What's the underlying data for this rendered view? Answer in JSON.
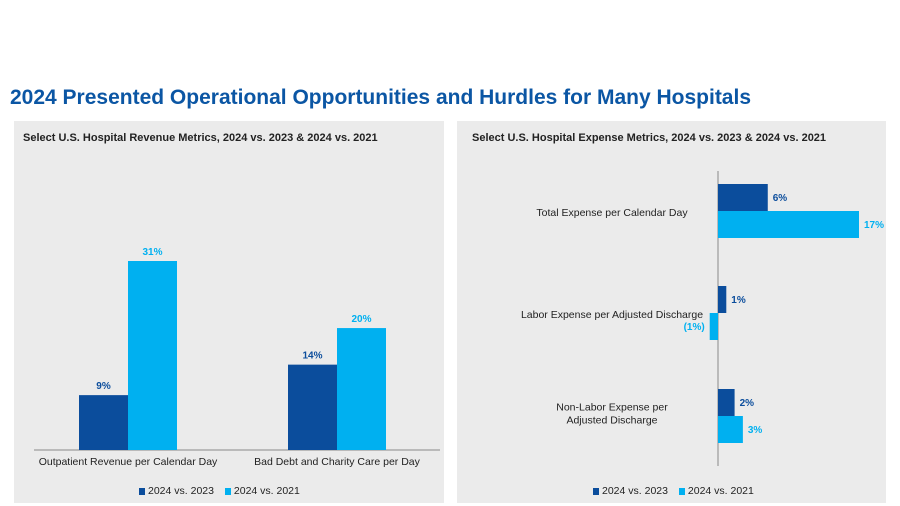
{
  "title": "2024 Presented Operational Opportunities and Hurdles for Many Hospitals",
  "colors": {
    "series_2023": "#0b4d9c",
    "series_2021": "#00b0f0",
    "title": "#0b56a4"
  },
  "chart_data": [
    {
      "type": "bar",
      "title": "Select U.S. Hospital Revenue Metrics, 2024 vs. 2023 & 2024 vs. 2021",
      "categories": [
        "Outpatient Revenue per Calendar Day",
        "Bad Debt and Charity Care per Day"
      ],
      "series": [
        {
          "name": "2024 vs. 2023",
          "values": [
            9,
            14
          ],
          "labels": [
            "9%",
            "14%"
          ]
        },
        {
          "name": "2024 vs. 2021",
          "values": [
            31,
            20
          ],
          "labels": [
            "31%",
            "20%"
          ]
        }
      ],
      "xlabel": "",
      "ylabel": "",
      "ylim": [
        0,
        35
      ],
      "legend": "bottom"
    },
    {
      "type": "bar",
      "orientation": "horizontal",
      "title": "Select U.S. Hospital Expense Metrics, 2024 vs. 2023 & 2024 vs. 2021",
      "categories": [
        "Total Expense per Calendar Day",
        "Labor Expense per Adjusted Discharge",
        "Non-Labor Expense per Adjusted Discharge"
      ],
      "series": [
        {
          "name": "2024 vs. 2023",
          "values": [
            6,
            1,
            2
          ],
          "labels": [
            "6%",
            "1%",
            "2%"
          ]
        },
        {
          "name": "2024 vs. 2021",
          "values": [
            17,
            -1,
            3
          ],
          "labels": [
            "17%",
            "(1%)",
            "3%"
          ]
        }
      ],
      "xlabel": "",
      "ylabel": "",
      "xlim": [
        -3,
        20
      ],
      "legend": "bottom"
    }
  ]
}
